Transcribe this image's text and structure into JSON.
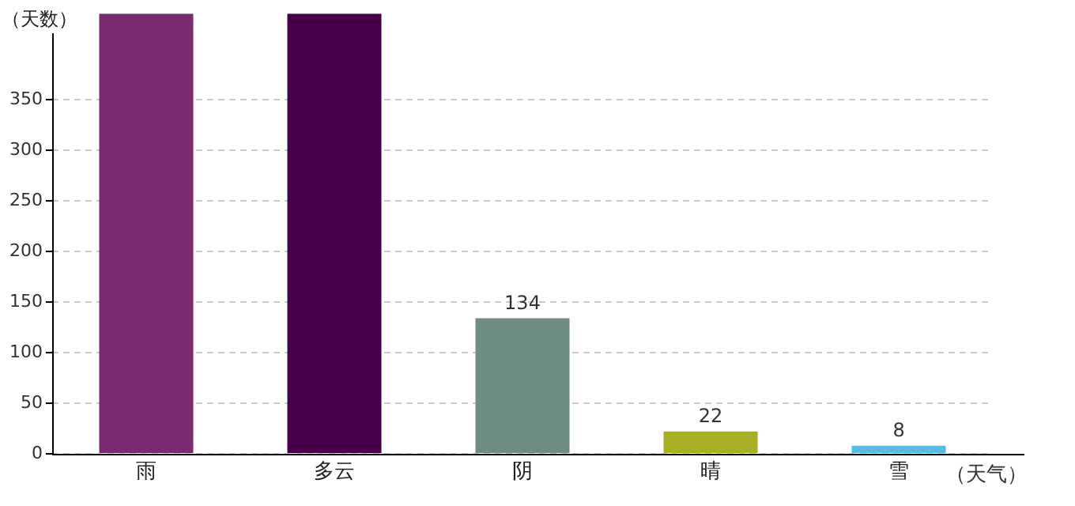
{
  "chart_data": {
    "type": "bar",
    "ylabel": "（天数）",
    "xlabel": "（天气）",
    "categories": [
      "雨",
      "多云",
      "阴",
      "晴",
      "雪"
    ],
    "values": [
      435,
      435,
      134,
      22,
      8
    ],
    "colors": [
      "#7a2a6e",
      "#46004a",
      "#6f8c82",
      "#a8ae25",
      "#55bde3"
    ],
    "value_labels": [
      null,
      null,
      "134",
      "22",
      "8"
    ],
    "ylim": [
      0,
      435
    ],
    "yticks": [
      0,
      50,
      100,
      150,
      200,
      250,
      300,
      350
    ],
    "grid": "y",
    "legend": false
  }
}
